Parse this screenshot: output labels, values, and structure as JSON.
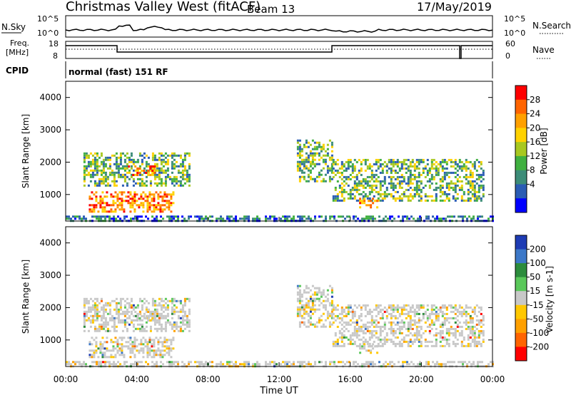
{
  "header": {
    "title": "Christmas Valley West (fitACF)",
    "beam": "Beam 13",
    "date": "17/May/2019"
  },
  "nsky_panel": {
    "left_label": "N.Sky",
    "right_label": "N.Search",
    "left_ticks": [
      "10^5",
      "10^0"
    ],
    "right_ticks": [
      "10^5",
      "10^0"
    ]
  },
  "freq_panel": {
    "left_label_1": "Freq.",
    "left_label_2": "[MHz]",
    "right_label": "Nave",
    "left_ticks": [
      "18",
      "8"
    ],
    "right_ticks": [
      "60",
      "0"
    ]
  },
  "cpid": {
    "label": "CPID",
    "value": "normal (fast) 151 RF"
  },
  "chart_data": [
    {
      "type": "heatmap",
      "name": "power",
      "ylabel": "Slant Range [km]",
      "ylim": [
        180,
        4500
      ],
      "yticks": [
        "4000",
        "3000",
        "2000",
        "1000"
      ],
      "colorbar": {
        "label": "Power [dB]",
        "ticks": [
          "28",
          "24",
          "20",
          "16",
          "12",
          "8",
          "4"
        ],
        "colors": [
          "#ff0000",
          "#ff6400",
          "#ffa000",
          "#ffd200",
          "#a8c820",
          "#40b040",
          "#3c8c78",
          "#2a5cb4",
          "#0000ff"
        ]
      },
      "regions": [
        {
          "t": [
            1.0,
            7.0
          ],
          "r": [
            1300,
            2300
          ],
          "level": "mixed"
        },
        {
          "t": [
            1.3,
            6.0
          ],
          "r": [
            500,
            1100
          ],
          "level": "high"
        },
        {
          "t": [
            3.5,
            5.0
          ],
          "r": [
            1600,
            1900
          ],
          "level": "high"
        },
        {
          "t": [
            13.0,
            15.0
          ],
          "r": [
            1400,
            2700
          ],
          "level": "mixed"
        },
        {
          "t": [
            15.0,
            23.5
          ],
          "r": [
            800,
            2100
          ],
          "level": "mixed"
        },
        {
          "t": [
            16.5,
            17.5
          ],
          "r": [
            600,
            900
          ],
          "level": "high"
        },
        {
          "t": [
            0.0,
            24.0
          ],
          "r": [
            200,
            350
          ],
          "level": "low"
        }
      ]
    },
    {
      "type": "heatmap",
      "name": "velocity",
      "ylabel": "Slant Range [km]",
      "ylim": [
        180,
        4500
      ],
      "yticks": [
        "4000",
        "3000",
        "2000",
        "1000"
      ],
      "xlabel": "Time UT",
      "xticks": [
        "00:00",
        "04:00",
        "08:00",
        "12:00",
        "16:00",
        "20:00",
        "00:00"
      ],
      "xlim": [
        0,
        24
      ],
      "colorbar": {
        "label": "Velocity [m s-1]",
        "ticks": [
          "200",
          "100",
          "50",
          "15",
          "-15",
          "-50",
          "-100",
          "-200"
        ],
        "colors": [
          "#1e3cb4",
          "#3c78c8",
          "#2c8c3c",
          "#5ac85a",
          "#c8c8c8",
          "#ffc800",
          "#ffa000",
          "#ff6400",
          "#ff0000"
        ]
      }
    }
  ]
}
